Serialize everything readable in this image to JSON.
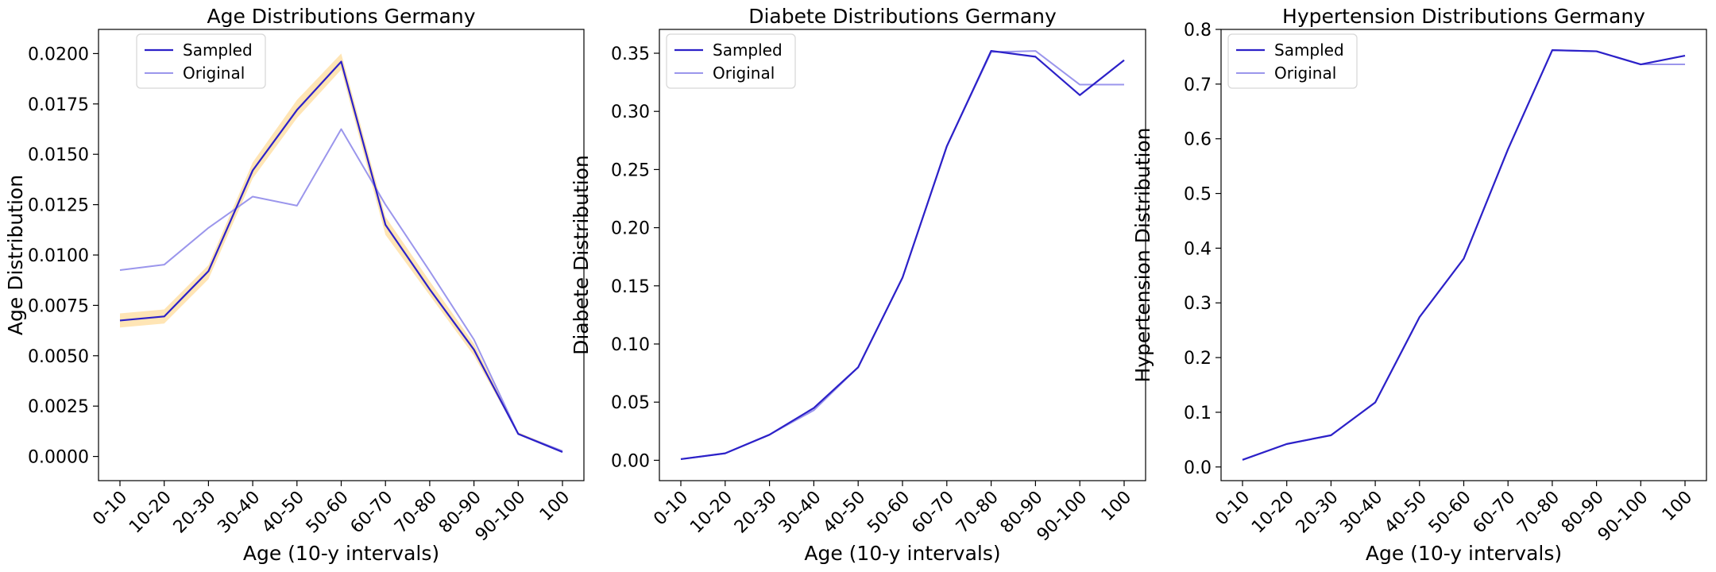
{
  "chart_data": [
    {
      "type": "line",
      "title": "Age Distributions Germany",
      "xlabel": "Age (10-y intervals)",
      "ylabel": "Age Distribution",
      "categories": [
        "0-10",
        "10-20",
        "20-30",
        "30-40",
        "40-50",
        "50-60",
        "60-70",
        "70-80",
        "80-90",
        "90-100",
        "100"
      ],
      "ylim": [
        -0.0012,
        0.0212
      ],
      "yticks": [
        0.0,
        0.0025,
        0.005,
        0.0075,
        0.01,
        0.0125,
        0.015,
        0.0175,
        0.02
      ],
      "ytick_labels": [
        "0.0000",
        "0.0025",
        "0.0050",
        "0.0075",
        "0.0100",
        "0.0125",
        "0.0150",
        "0.0175",
        "0.0200"
      ],
      "band": {
        "color": "#ffe0a8",
        "lower": [
          0.0064,
          0.0066,
          0.0088,
          0.0138,
          0.0168,
          0.0192,
          0.011,
          0.008,
          0.005,
          0.0011,
          0.0002
        ],
        "upper": [
          0.0071,
          0.0073,
          0.0095,
          0.0146,
          0.0177,
          0.02,
          0.0119,
          0.0087,
          0.0056,
          0.0012,
          0.0003
        ]
      },
      "series": [
        {
          "name": "Sampled",
          "color": "#2c21c8",
          "width": 2.2,
          "values": [
            0.00675,
            0.00695,
            0.0092,
            0.0142,
            0.0172,
            0.0196,
            0.0115,
            0.0083,
            0.0053,
            0.00112,
            0.00022
          ]
        },
        {
          "name": "Original",
          "color": "#9b96ec",
          "width": 2.0,
          "values": [
            0.00925,
            0.00952,
            0.01135,
            0.0129,
            0.01245,
            0.01625,
            0.0125,
            0.0092,
            0.0058,
            0.00112,
            0.00027
          ]
        }
      ],
      "legend": {
        "position": "upper-left"
      },
      "grid": false
    },
    {
      "type": "line",
      "title": "Diabete Distributions Germany",
      "xlabel": "Age (10-y intervals)",
      "ylabel": "Diabete Distribution",
      "categories": [
        "0-10",
        "10-20",
        "20-30",
        "30-40",
        "40-50",
        "50-60",
        "60-70",
        "70-80",
        "80-90",
        "90-100",
        "100"
      ],
      "ylim": [
        -0.0175,
        0.3705
      ],
      "yticks": [
        0.0,
        0.05,
        0.1,
        0.15,
        0.2,
        0.25,
        0.3,
        0.35
      ],
      "ytick_labels": [
        "0.00",
        "0.05",
        "0.10",
        "0.15",
        "0.20",
        "0.25",
        "0.30",
        "0.35"
      ],
      "series": [
        {
          "name": "Sampled",
          "color": "#2c21c8",
          "width": 2.2,
          "values": [
            0.001,
            0.006,
            0.022,
            0.045,
            0.08,
            0.157,
            0.27,
            0.352,
            0.347,
            0.314,
            0.344
          ]
        },
        {
          "name": "Original",
          "color": "#9b96ec",
          "width": 2.0,
          "values": [
            0.001,
            0.006,
            0.022,
            0.043,
            0.08,
            0.157,
            0.27,
            0.351,
            0.352,
            0.323,
            0.323
          ]
        }
      ],
      "legend": {
        "position": "upper-left"
      },
      "grid": false
    },
    {
      "type": "line",
      "title": "Hypertension Distributions Germany",
      "xlabel": "Age (10-y intervals)",
      "ylabel": "Hypertension Distribution",
      "categories": [
        "0-10",
        "10-20",
        "20-30",
        "30-40",
        "40-50",
        "50-60",
        "60-70",
        "70-80",
        "80-90",
        "90-100",
        "100"
      ],
      "ylim": [
        -0.025,
        0.8
      ],
      "yticks": [
        0.0,
        0.1,
        0.2,
        0.3,
        0.4,
        0.5,
        0.6,
        0.7,
        0.8
      ],
      "ytick_labels": [
        "0.0",
        "0.1",
        "0.2",
        "0.3",
        "0.4",
        "0.5",
        "0.6",
        "0.7",
        "0.8"
      ],
      "series": [
        {
          "name": "Sampled",
          "color": "#2c21c8",
          "width": 2.2,
          "values": [
            0.013,
            0.042,
            0.058,
            0.118,
            0.274,
            0.381,
            0.581,
            0.762,
            0.76,
            0.736,
            0.752
          ]
        },
        {
          "name": "Original",
          "color": "#9b96ec",
          "width": 2.0,
          "values": [
            0.013,
            0.042,
            0.058,
            0.118,
            0.274,
            0.381,
            0.581,
            0.762,
            0.76,
            0.736,
            0.736
          ]
        }
      ],
      "legend": {
        "position": "upper-left"
      },
      "grid": false
    }
  ]
}
